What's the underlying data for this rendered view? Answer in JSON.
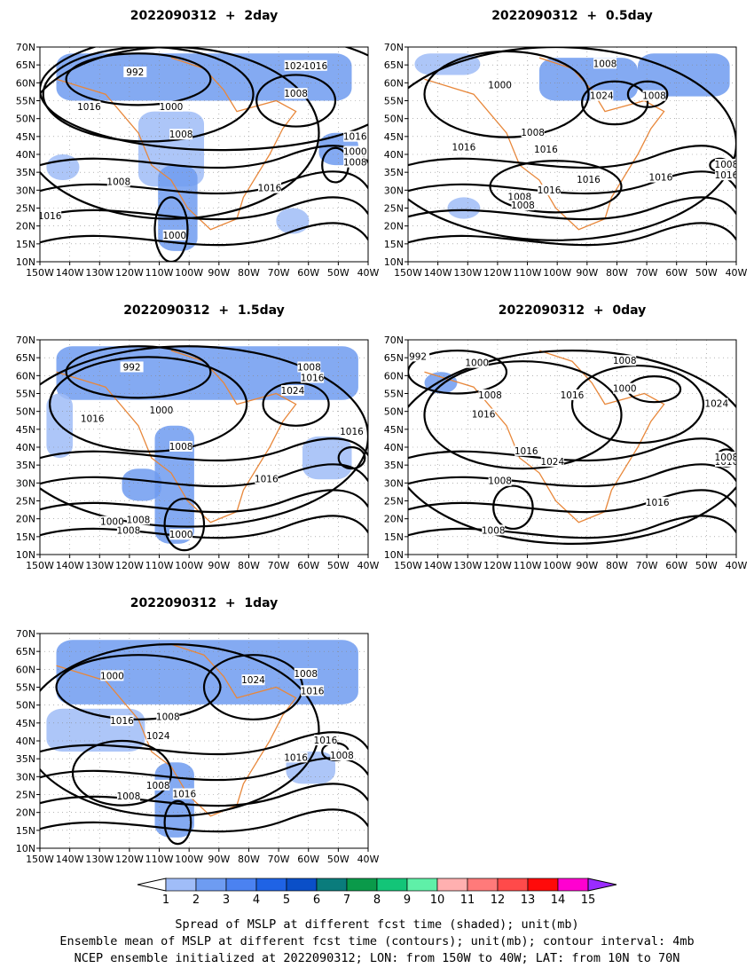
{
  "panels": [
    {
      "id": "p2day",
      "title": "2022090312  +  2day"
    },
    {
      "id": "p05day",
      "title": "2022090312  +  0.5day"
    },
    {
      "id": "p15day",
      "title": "2022090312  +  1.5day"
    },
    {
      "id": "p0day",
      "title": "2022090312  +  0day"
    },
    {
      "id": "p1day",
      "title": "2022090312  +  1day"
    }
  ],
  "axes": {
    "x_ticks": [
      "150W",
      "140W",
      "130W",
      "120W",
      "110W",
      "100W",
      "90W",
      "80W",
      "70W",
      "60W",
      "50W",
      "40W"
    ],
    "y_ticks": [
      "70N",
      "65N",
      "60N",
      "55N",
      "50N",
      "45N",
      "40N",
      "35N",
      "30N",
      "25N",
      "20N",
      "15N",
      "10N"
    ]
  },
  "colors": {
    "contour": "#000000",
    "coastline": "#e8873a",
    "spread_1": "#9fbcf7",
    "spread_2": "#6f9bf0",
    "grid": "#888888"
  },
  "legend": {
    "labels": [
      "1",
      "2",
      "3",
      "4",
      "5",
      "6",
      "7",
      "8",
      "9",
      "10",
      "11",
      "12",
      "13",
      "14",
      "15"
    ],
    "colors": [
      "#ffffff",
      "#a0bdf8",
      "#6e9cf2",
      "#4b82f1",
      "#1f63e5",
      "#0a4fc8",
      "#0a7c7c",
      "#0a9a4a",
      "#13c578",
      "#5ff0a8",
      "#ffb0b0",
      "#ff7a7a",
      "#ff4a4a",
      "#ff0a0a",
      "#ff00d0",
      "#9a2cff"
    ]
  },
  "caption": [
    "Spread of MSLP at different fcst time (shaded); unit(mb)",
    "Ensemble mean of MSLP at different fcst time (contours); unit(mb); contour interval: 4mb",
    "NCEP ensemble initialized at 2022090312; LON: from 150W to 40W; LAT: from 10N to 70N"
  ],
  "chart_data": [
    {
      "type": "heatmap",
      "panel": "2022090312 + 2day",
      "contour_labels": [
        "992",
        "1000",
        "1008",
        "1016",
        "1024",
        "1008",
        "1016",
        "1016",
        "1008",
        "1000",
        "1016",
        "1000",
        "1008",
        "1016"
      ]
    },
    {
      "type": "heatmap",
      "panel": "2022090312 + 0.5day",
      "contour_labels": [
        "1000",
        "1016",
        "1024",
        "1008",
        "1008",
        "1016",
        "1016",
        "1008",
        "1008",
        "1016",
        "1016",
        "1008",
        "1016",
        "1008"
      ]
    },
    {
      "type": "heatmap",
      "panel": "2022090312 + 1.5day",
      "contour_labels": [
        "992",
        "1000",
        "1016",
        "1008",
        "1024",
        "1016",
        "1008",
        "1016",
        "1000",
        "1008",
        "1008",
        "1000",
        "1016"
      ]
    },
    {
      "type": "heatmap",
      "panel": "2022090312 + 0day",
      "contour_labels": [
        "992",
        "1000",
        "1008",
        "1016",
        "1016",
        "1024",
        "1000",
        "1008",
        "1024",
        "1016",
        "1008",
        "1008",
        "1016",
        "1008",
        "1016"
      ]
    },
    {
      "type": "heatmap",
      "panel": "2022090312 + 1day",
      "contour_labels": [
        "1000",
        "1008",
        "1016",
        "1024",
        "1008",
        "1016",
        "1016",
        "1024",
        "1008",
        "1008",
        "1016",
        "1016",
        "1008"
      ]
    }
  ]
}
